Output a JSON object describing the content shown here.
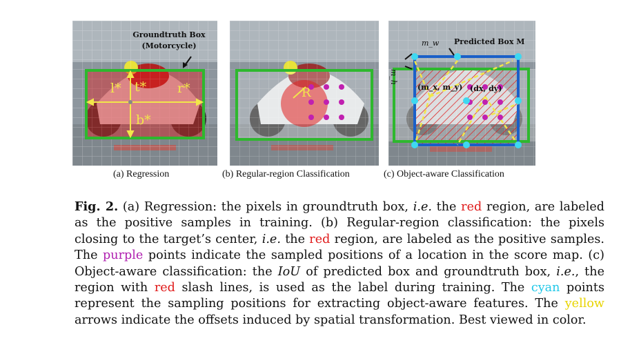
{
  "panels": {
    "a": {
      "groundtruth_label_line1": "Groundtruth Box",
      "groundtruth_label_line2": "(Motorcycle)",
      "l": "l*",
      "t": "t*",
      "r": "r*",
      "b": "b*",
      "subcaption": "(a) Regression"
    },
    "b": {
      "radius_label": "R",
      "subcaption": "(b) Regular-region Classification"
    },
    "c": {
      "predicted_label": "Predicted Box M",
      "mw": "m_w",
      "mh": "m_h",
      "center_label": "(m_x, m_y)",
      "offset_label": "(dx, dy)",
      "subcaption": "(c) Object-aware Classification"
    }
  },
  "caption": {
    "fig_label": "Fig. 2.",
    "p1": " (a) Regression: the pixels in groundtruth box, ",
    "ie1": "i.e.",
    "p2": " the ",
    "red1": "red",
    "p3": " region, are labeled as the positive samples in training. (b) Regular-region classification: the pixels closing to the target’s center, ",
    "ie2": "i.e.",
    "p4": " the ",
    "red2": "red",
    "p5": " region, are labeled as the positive samples. The ",
    "purple": "purple",
    "p6": " points indicate the sampled positions of a location in the score map. (c) Object-aware classification: the ",
    "iou": "IoU",
    "p7": " of predicted box and groundtruth box, ",
    "ie3": "i.e.",
    "p8": ", the region with ",
    "red3": "red",
    "p9": " slash lines, is used as the label during training. The ",
    "cyan": "cyan",
    "p10": " points represent the sampling positions for extracting object-aware features. The ",
    "yellow": "yellow",
    "p11": " arrows indicate the offsets induced by spatial transformation. Best viewed in color."
  },
  "colors": {
    "red": "#e01b1b",
    "purple": "#b020b0",
    "cyan": "#22c8e8",
    "yellow": "#e8d400",
    "green_box": "#2eb82e",
    "blue_box": "#1a5fc8"
  }
}
